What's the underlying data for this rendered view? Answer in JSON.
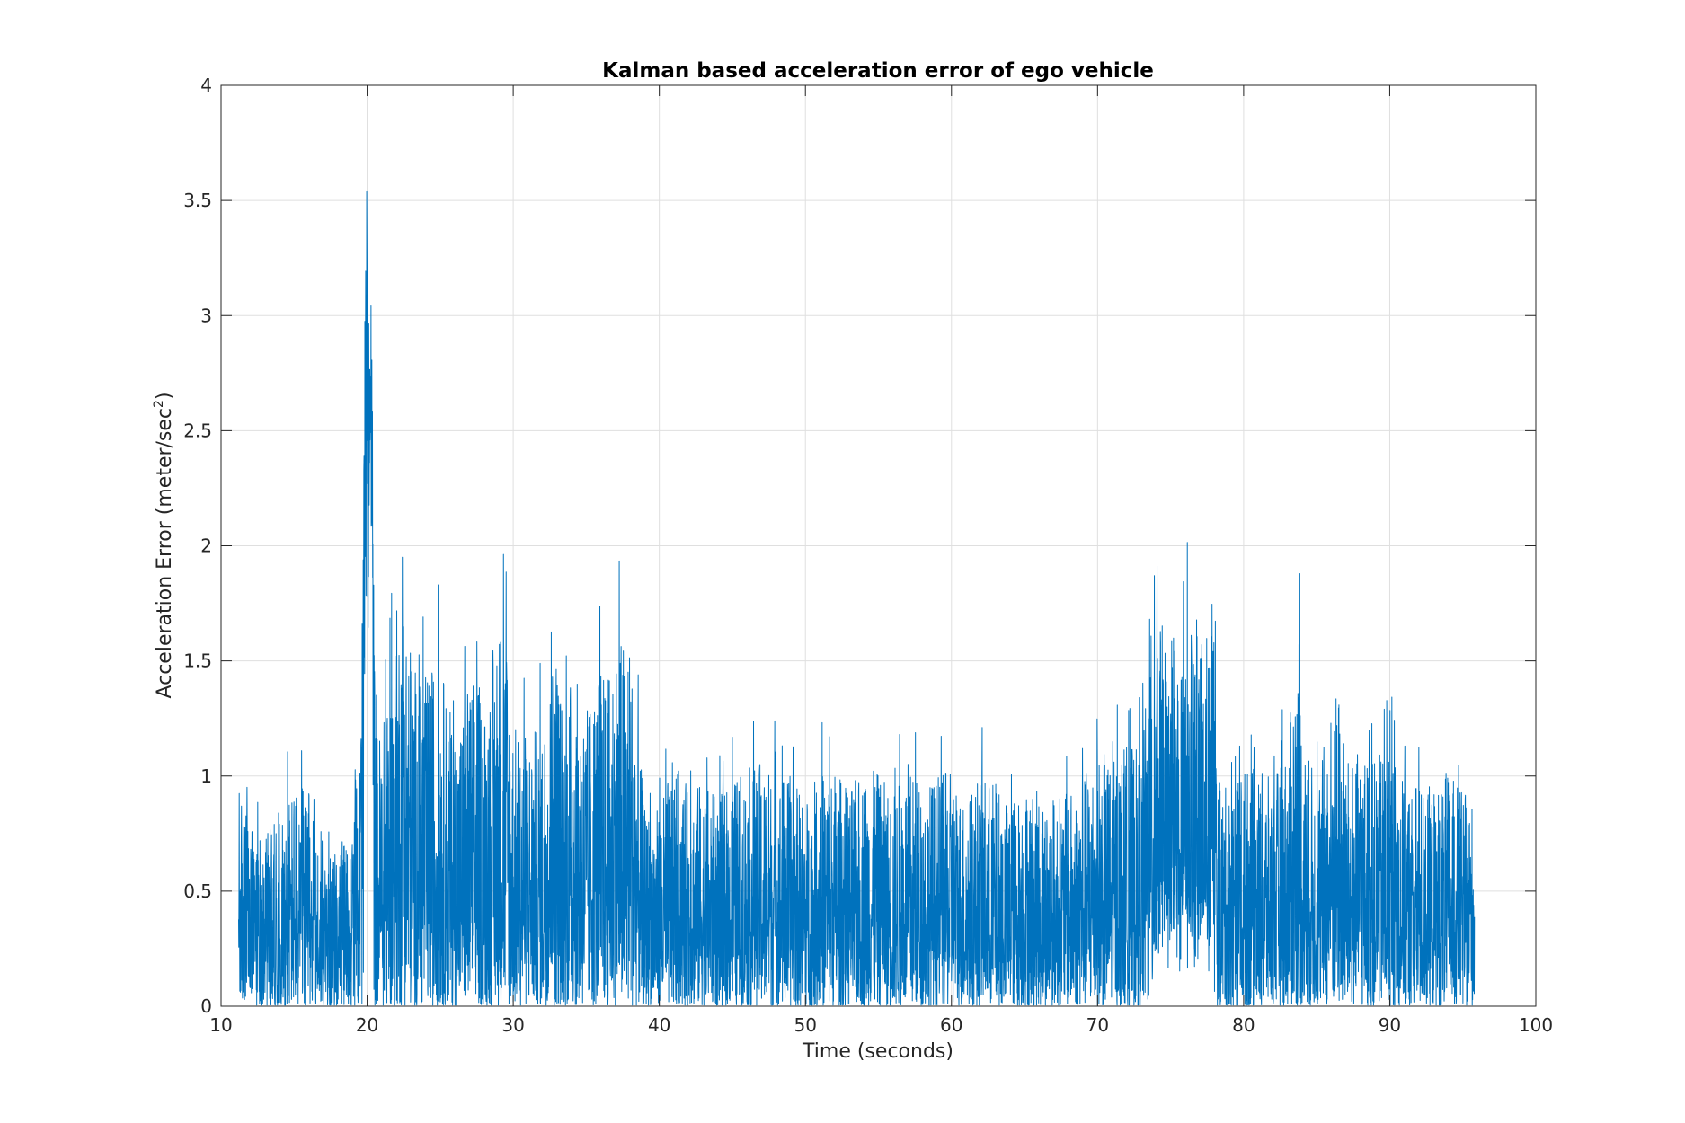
{
  "chart_data": {
    "type": "line",
    "title": "Kalman based acceleration error of ego vehicle",
    "xlabel": "Time (seconds)",
    "ylabel_main": "Acceleration Error (meter/sec",
    "ylabel_sup": "2",
    "ylabel_close": ")",
    "xlim": [
      10,
      100
    ],
    "ylim": [
      0,
      4
    ],
    "grid": true,
    "legend": "none",
    "colors": {
      "series": "#0072BD",
      "grid": "#dfdfdf",
      "axis": "#262626"
    },
    "xticks": [
      "10",
      "20",
      "30",
      "40",
      "50",
      "60",
      "70",
      "80",
      "90",
      "100"
    ],
    "yticks": [
      "0",
      "0.5",
      "1",
      "1.5",
      "2",
      "2.5",
      "3",
      "3.5",
      "4"
    ],
    "x_range": [
      11.2,
      95.8
    ],
    "series": [
      {
        "envelope": [
          [
            11.2,
            1.17
          ],
          [
            12,
            0.95
          ],
          [
            13,
            0.9
          ],
          [
            14,
            1.05
          ],
          [
            15,
            1.17
          ],
          [
            16,
            1.15
          ],
          [
            17,
            0.72
          ],
          [
            18,
            0.85
          ],
          [
            19,
            0.95
          ],
          [
            19.5,
            1.35
          ],
          [
            19.9,
            3.55
          ],
          [
            20.1,
            3.66
          ],
          [
            20.3,
            3.2
          ],
          [
            20.6,
            1.48
          ],
          [
            21,
            1.49
          ],
          [
            21.5,
            1.65
          ],
          [
            22,
            2.12
          ],
          [
            22.5,
            2.23
          ],
          [
            23,
            1.95
          ],
          [
            23.5,
            1.72
          ],
          [
            24,
            1.75
          ],
          [
            24.5,
            1.82
          ],
          [
            25,
            1.84
          ],
          [
            26,
            1.45
          ],
          [
            27,
            1.74
          ],
          [
            27.5,
            1.77
          ],
          [
            28,
            1.6
          ],
          [
            29,
            2.1
          ],
          [
            29.5,
            2.05
          ],
          [
            30,
            1.5
          ],
          [
            31,
            1.45
          ],
          [
            32,
            1.5
          ],
          [
            32.7,
            1.88
          ],
          [
            33,
            1.96
          ],
          [
            33.5,
            1.5
          ],
          [
            34,
            1.8
          ],
          [
            35,
            1.58
          ],
          [
            36,
            1.8
          ],
          [
            36.5,
            1.75
          ],
          [
            37,
            1.95
          ],
          [
            37.5,
            1.97
          ],
          [
            38,
            1.96
          ],
          [
            38.5,
            1.5
          ],
          [
            39,
            1.05
          ],
          [
            40,
            1.05
          ],
          [
            41,
            1.32
          ],
          [
            42,
            1.15
          ],
          [
            43,
            1.2
          ],
          [
            44,
            1.1
          ],
          [
            45,
            1.2
          ],
          [
            46,
            1.27
          ],
          [
            47,
            1.3
          ],
          [
            48,
            1.25
          ],
          [
            49,
            1.22
          ],
          [
            50,
            1.1
          ],
          [
            51,
            1.25
          ],
          [
            52,
            1.27
          ],
          [
            53,
            1.15
          ],
          [
            54,
            1.26
          ],
          [
            55,
            1.24
          ],
          [
            56,
            1.13
          ],
          [
            57,
            1.3
          ],
          [
            58,
            1.18
          ],
          [
            59,
            1.22
          ],
          [
            60,
            1.25
          ],
          [
            61,
            1.1
          ],
          [
            62,
            1.24
          ],
          [
            63,
            1.2
          ],
          [
            64,
            1.08
          ],
          [
            65,
            1.18
          ],
          [
            66,
            1.14
          ],
          [
            67,
            1.12
          ],
          [
            68,
            1.13
          ],
          [
            69,
            1.2
          ],
          [
            69.5,
            1.33
          ],
          [
            70,
            1.37
          ],
          [
            71,
            1.3
          ],
          [
            72,
            1.4
          ],
          [
            73,
            1.35
          ],
          [
            73.7,
            2.02
          ],
          [
            74,
            1.9
          ],
          [
            74.5,
            2.12
          ],
          [
            75,
            2.0
          ],
          [
            75.5,
            2.12
          ],
          [
            76,
            2.05
          ],
          [
            76.5,
            1.98
          ],
          [
            77,
            2.1
          ],
          [
            77.5,
            2.0
          ],
          [
            78,
            1.96
          ],
          [
            78.2,
            1.2
          ],
          [
            79,
            1.15
          ],
          [
            80,
            1.28
          ],
          [
            81,
            1.25
          ],
          [
            82,
            1.2
          ],
          [
            83,
            1.38
          ],
          [
            83.8,
            2.1
          ],
          [
            84,
            1.45
          ],
          [
            85,
            1.2
          ],
          [
            86,
            1.6
          ],
          [
            86.5,
            1.71
          ],
          [
            87,
            1.3
          ],
          [
            88,
            1.35
          ],
          [
            89,
            1.3
          ],
          [
            90,
            1.4
          ],
          [
            91,
            1.2
          ],
          [
            92,
            1.2
          ],
          [
            93,
            1.15
          ],
          [
            94,
            1.25
          ],
          [
            95,
            1.13
          ],
          [
            95.8,
            1.1
          ]
        ]
      }
    ]
  }
}
